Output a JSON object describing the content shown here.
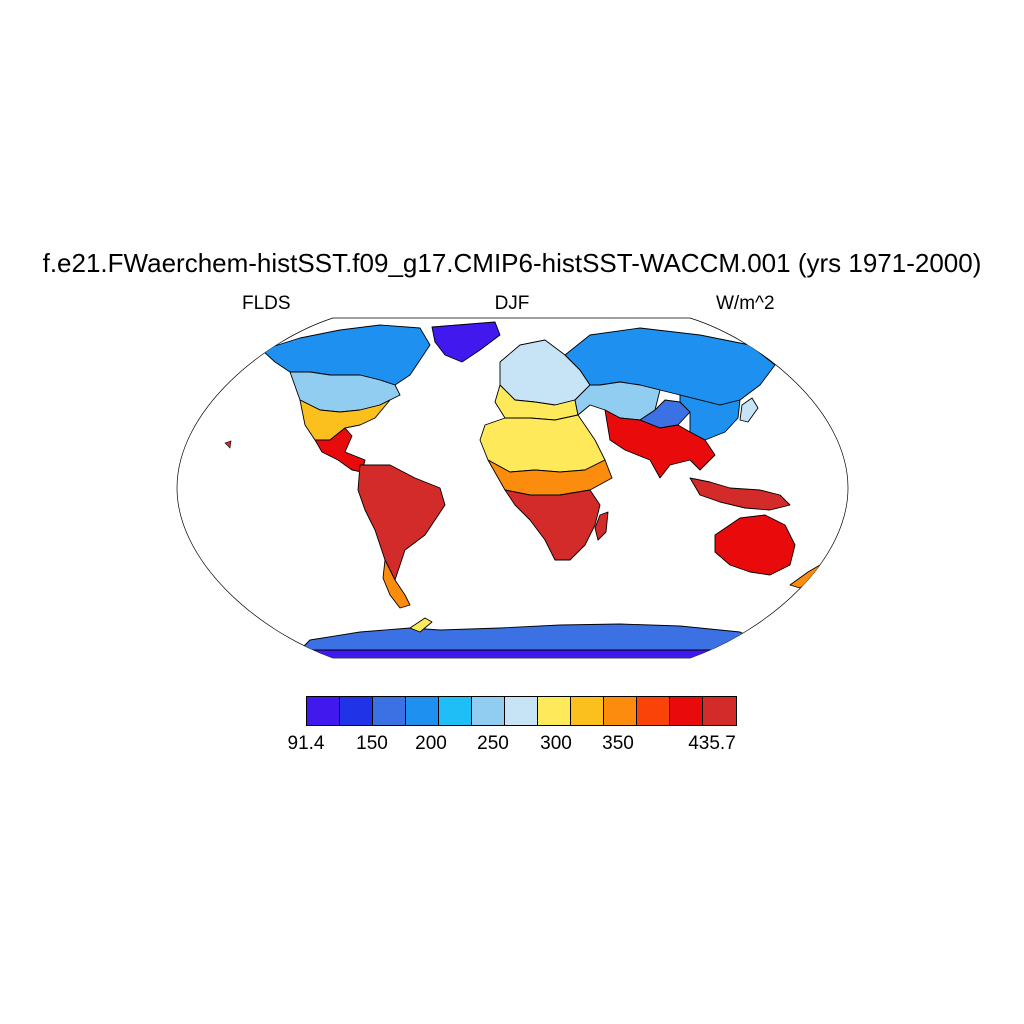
{
  "title": "f.e21.FWaerchem-histSST.f09_g17.CMIP6-histSST-WACCM.001 (yrs 1971-2000)",
  "left_label": "FLDS",
  "center_label": "DJF",
  "right_label": "W/m^2",
  "projection": "Robinson",
  "colorbar": {
    "colors": [
      "#4118ee",
      "#2133e6",
      "#3c71e4",
      "#1e90f0",
      "#1fbef7",
      "#91cdf0",
      "#c6e4f6",
      "#fde95a",
      "#fbc01e",
      "#fb8c0e",
      "#fa4308",
      "#e90b0b",
      "#d32a2a"
    ],
    "tick_labels": [
      "91.4",
      "150",
      "200",
      "250",
      "300",
      "350",
      "435.7"
    ]
  },
  "regions": [
    {
      "name": "greenland",
      "level": 0
    },
    {
      "name": "northern-canada",
      "level": 3
    },
    {
      "name": "central-north-america",
      "level": 5
    },
    {
      "name": "southern-north-america",
      "level": 8
    },
    {
      "name": "central-america",
      "level": 11
    },
    {
      "name": "south-america",
      "level": 12
    },
    {
      "name": "sahara",
      "level": 7
    },
    {
      "name": "central-africa",
      "level": 12
    },
    {
      "name": "northern-russia",
      "level": 3
    },
    {
      "name": "central-asia",
      "level": 5
    },
    {
      "name": "tibet",
      "level": 2
    },
    {
      "name": "south-asia",
      "level": 11
    },
    {
      "name": "maritime-continent",
      "level": 12
    },
    {
      "name": "australia",
      "level": 11
    },
    {
      "name": "antarctica",
      "level": 1
    }
  ]
}
